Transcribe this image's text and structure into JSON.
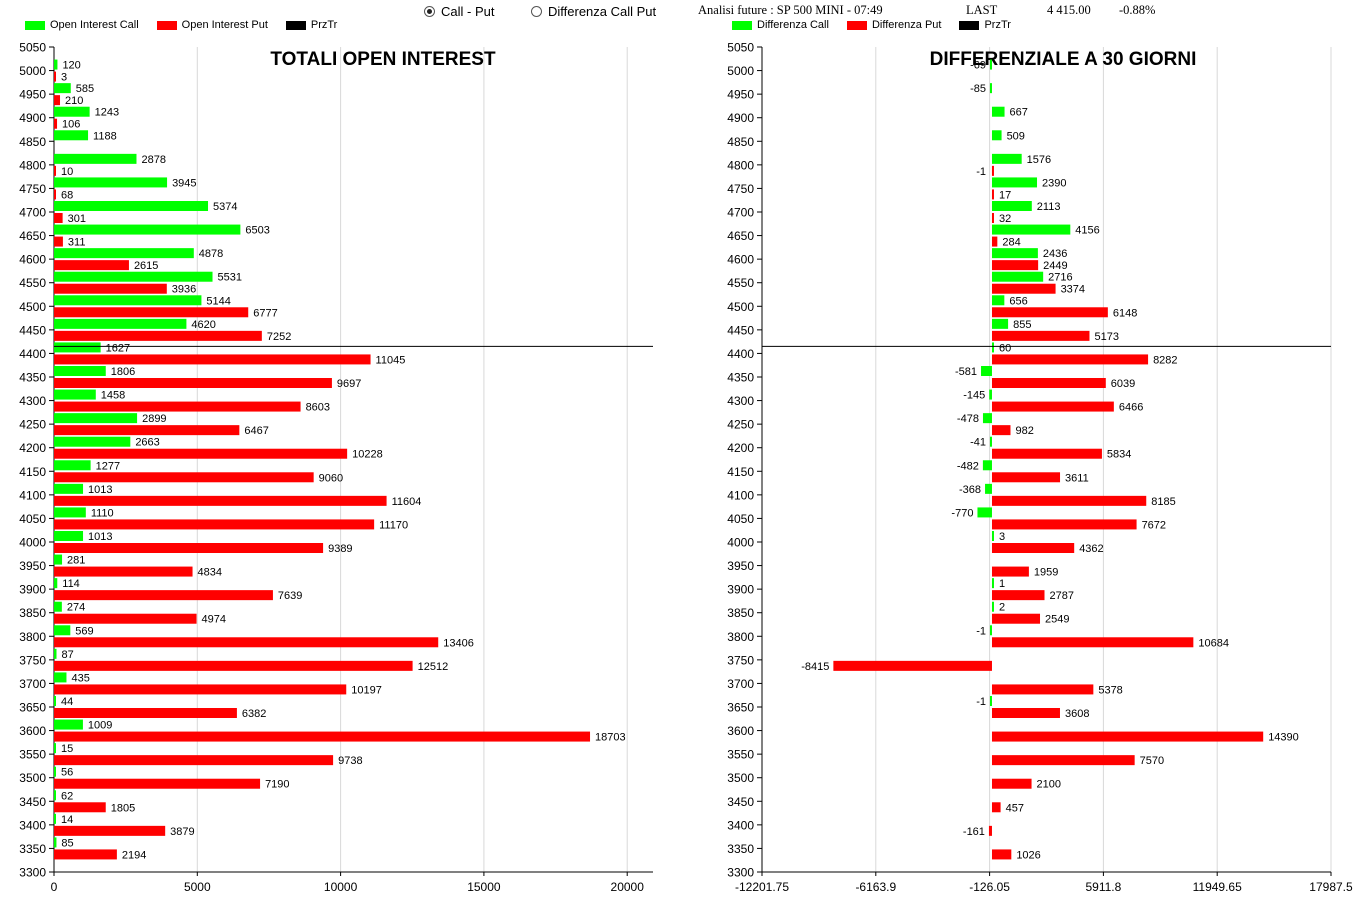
{
  "header": {
    "radio_options": [
      {
        "label": "Call - Put",
        "checked": true
      },
      {
        "label": "Differenza Call Put",
        "checked": false
      }
    ],
    "future_label": "Analisi future : SP 500 MINI - 07:49",
    "last_label": "LAST",
    "last_value": "4 415.00",
    "change": "-0.88%"
  },
  "colors": {
    "call": "#00ff00",
    "put": "#ff0000",
    "price": "#000000"
  },
  "chart_data": [
    {
      "type": "bar",
      "orientation": "horizontal",
      "title": "TOTALI OPEN INTEREST",
      "legend": [
        "Open Interest Call",
        "Open Interest Put",
        "PrzTr"
      ],
      "y_ticks": [
        "5050",
        "5000",
        "4950",
        "4900",
        "4850",
        "4800",
        "4750",
        "4700",
        "4650",
        "4600",
        "4550",
        "4500",
        "4450",
        "4400",
        "4350",
        "4300",
        "4250",
        "4200",
        "4150",
        "4100",
        "4050",
        "4000",
        "3950",
        "3900",
        "3850",
        "3800",
        "3750",
        "3700",
        "3650",
        "3600",
        "3550",
        "3500",
        "3450",
        "3400",
        "3350",
        "3300"
      ],
      "x_ticks": [
        "0",
        "5000",
        "10000",
        "15000",
        "20000"
      ],
      "xlim": [
        0,
        20900
      ],
      "ylim": [
        3300,
        5050
      ],
      "price_line": 4415,
      "categories": [
        5000,
        4950,
        4900,
        4850,
        4800,
        4750,
        4700,
        4650,
        4600,
        4550,
        4500,
        4450,
        4400,
        4350,
        4300,
        4250,
        4200,
        4150,
        4100,
        4050,
        4000,
        3950,
        3900,
        3850,
        3800,
        3750,
        3700,
        3650,
        3600,
        3550,
        3500,
        3450,
        3400,
        3350
      ],
      "series": [
        {
          "name": "Open Interest Call",
          "values": [
            120,
            585,
            1243,
            1188,
            2878,
            3945,
            5374,
            6503,
            4878,
            5531,
            5144,
            4620,
            1627,
            1806,
            1458,
            2899,
            2663,
            1277,
            1013,
            1110,
            1013,
            281,
            114,
            274,
            569,
            87,
            435,
            44,
            1009,
            15,
            56,
            62,
            14,
            85
          ]
        },
        {
          "name": "Open Interest Put",
          "values": [
            3,
            210,
            106,
            null,
            10,
            68,
            301,
            311,
            2615,
            3936,
            6777,
            7252,
            11045,
            9697,
            8603,
            6467,
            10228,
            9060,
            11604,
            11170,
            9389,
            4834,
            7639,
            4974,
            13406,
            12512,
            10197,
            6382,
            18703,
            9738,
            7190,
            1805,
            3879,
            2194
          ]
        }
      ]
    },
    {
      "type": "bar",
      "orientation": "horizontal",
      "title": "DIFFERENZIALE A 30 GIORNI",
      "legend": [
        "Differenza Call",
        "Differenza Put",
        "PrzTr"
      ],
      "y_ticks": [
        "5050",
        "5000",
        "4950",
        "4900",
        "4850",
        "4800",
        "4750",
        "4700",
        "4650",
        "4600",
        "4550",
        "4500",
        "4450",
        "4400",
        "4350",
        "4300",
        "4250",
        "4200",
        "4150",
        "4100",
        "4050",
        "4000",
        "3950",
        "3900",
        "3850",
        "3800",
        "3750",
        "3700",
        "3650",
        "3600",
        "3550",
        "3500",
        "3450",
        "3400",
        "3350",
        "3300"
      ],
      "x_ticks": [
        "-12201.75",
        "-6163.9",
        "-126.05",
        "5911.8",
        "11949.65",
        "17987.5"
      ],
      "xlim": [
        -12201.75,
        17987.5
      ],
      "ylim": [
        3300,
        5050
      ],
      "price_line": 4415,
      "categories": [
        5000,
        4950,
        4900,
        4850,
        4800,
        4750,
        4700,
        4650,
        4600,
        4550,
        4500,
        4450,
        4400,
        4350,
        4300,
        4250,
        4200,
        4150,
        4100,
        4050,
        4000,
        3950,
        3900,
        3850,
        3800,
        3750,
        3700,
        3650,
        3600,
        3550,
        3500,
        3450,
        3400,
        3350
      ],
      "series": [
        {
          "name": "Differenza Call",
          "values": [
            -69,
            -85,
            667,
            509,
            1576,
            2390,
            2113,
            4156,
            2436,
            2716,
            656,
            855,
            60,
            -581,
            -145,
            -478,
            -41,
            -482,
            -368,
            -770,
            3,
            null,
            1,
            2,
            -1,
            null,
            null,
            -1,
            null,
            null,
            null,
            null,
            null,
            null
          ]
        },
        {
          "name": "Differenza Put",
          "values": [
            null,
            null,
            null,
            null,
            -1,
            17,
            32,
            284,
            2449,
            3374,
            6148,
            5173,
            8282,
            6039,
            6466,
            982,
            5834,
            3611,
            8185,
            7672,
            4362,
            1959,
            2787,
            2549,
            10684,
            -8415,
            5378,
            3608,
            14390,
            7570,
            2100,
            457,
            -161,
            1026
          ]
        }
      ]
    }
  ]
}
